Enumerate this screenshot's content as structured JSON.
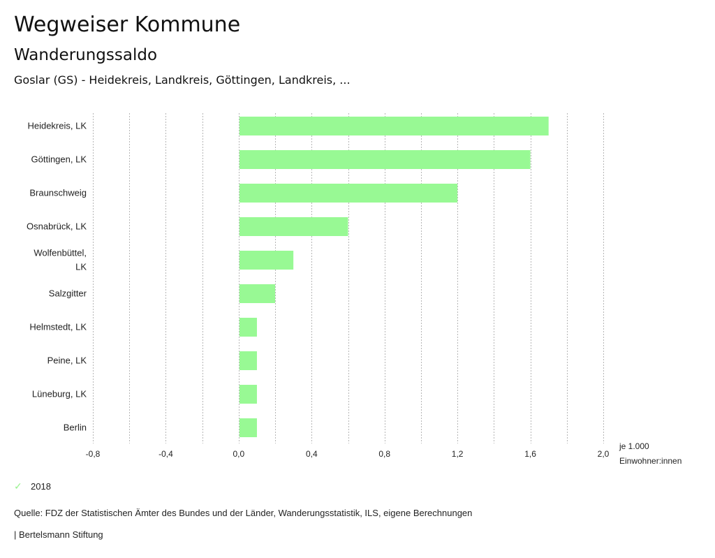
{
  "header": {
    "title": "Wegweiser Kommune",
    "subtitle": "Wanderungssaldo",
    "selection": "Goslar (GS) - Heidekreis, Landkreis, Göttingen, Landkreis, ..."
  },
  "colors": {
    "bar": "#98f994",
    "grid": "#b5b5b5",
    "legend_check": "#98f28e"
  },
  "chart_data": {
    "type": "bar",
    "orientation": "horizontal",
    "title": "Wanderungssaldo",
    "categories": [
      [
        "Heidekreis, LK"
      ],
      [
        "Göttingen, LK"
      ],
      [
        "Braunschweig"
      ],
      [
        "Osnabrück, LK"
      ],
      [
        "Wolfenbüttel,",
        "LK"
      ],
      [
        "Salzgitter"
      ],
      [
        "Helmstedt, LK"
      ],
      [
        "Peine, LK"
      ],
      [
        "Lüneburg, LK"
      ],
      [
        "Berlin"
      ]
    ],
    "series": [
      {
        "name": "2018",
        "values": [
          1.7,
          1.6,
          1.2,
          0.6,
          0.3,
          0.2,
          0.1,
          0.1,
          0.1,
          0.1
        ]
      }
    ],
    "xlim": [
      -0.8,
      2.0
    ],
    "grid_step": 0.2,
    "tick_values": [
      -0.8,
      -0.4,
      0.0,
      0.4,
      0.8,
      1.2,
      1.6,
      2.0
    ],
    "tick_labels": [
      "-0,8",
      "-0,4",
      "0,0",
      "0,4",
      "0,8",
      "1,2",
      "1,6",
      "2,0"
    ],
    "xlabel": [
      "je 1.000",
      "Einwohner:innen"
    ],
    "grid": true,
    "legend": "bottom-left"
  },
  "legend": {
    "items": [
      {
        "label": "2018",
        "icon": "check-icon"
      }
    ]
  },
  "footer": {
    "source": "Quelle: FDZ der Statistischen Ämter des Bundes und der Länder, Wanderungsstatistik, ILS, eigene Berechnungen",
    "credit": "| Bertelsmann Stiftung"
  }
}
